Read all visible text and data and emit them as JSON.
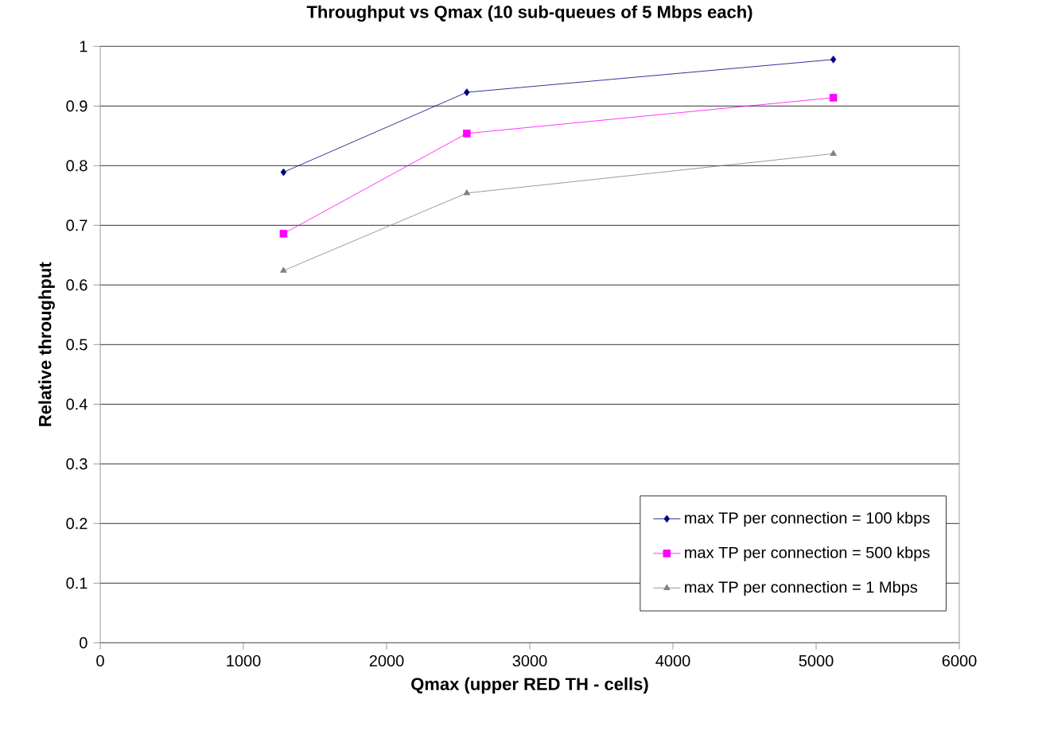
{
  "chart_data": {
    "type": "line",
    "title": "Throughput vs Qmax (10 sub-queues of 5 Mbps each)",
    "xlabel": "Qmax (upper RED TH - cells)",
    "ylabel": "Relative throughput",
    "x": [
      1280,
      2560,
      5120
    ],
    "series": [
      {
        "name": "max TP per connection = 100 kbps",
        "color": "#000080",
        "marker": "diamond",
        "values": [
          0.789,
          0.923,
          0.978
        ]
      },
      {
        "name": "max TP per connection = 500 kbps",
        "color": "#ff00ff",
        "marker": "square",
        "values": [
          0.686,
          0.854,
          0.914
        ]
      },
      {
        "name": "max TP per connection = 1 Mbps",
        "color": "#808080",
        "marker": "triangle",
        "values": [
          0.624,
          0.754,
          0.82
        ]
      }
    ],
    "xlim": [
      0,
      6000
    ],
    "xticks": [
      0,
      1000,
      2000,
      3000,
      4000,
      5000,
      6000
    ],
    "ylim": [
      0,
      1
    ],
    "yticks": [
      0,
      0.1,
      0.2,
      0.3,
      0.4,
      0.5,
      0.6,
      0.7,
      0.8,
      0.9,
      1
    ],
    "grid": "y",
    "legend": "right",
    "line_style": "solid"
  }
}
